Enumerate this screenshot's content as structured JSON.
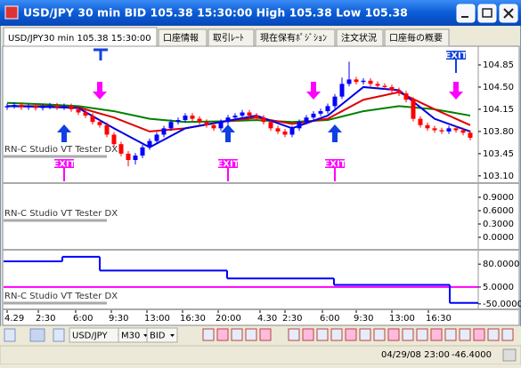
{
  "window": {
    "title": "USD/JPY 30 min BID 105.38 15:30:00 High 105.38 Low 105.38"
  },
  "tabs": [
    "USD/JPY30 min 105.38 15:30:00",
    "口座情報",
    "取引ﾚｰﾄ",
    "現在保有ﾎﾟｼﾞｼｮﾝ",
    "注文状況",
    "口座毎の概要"
  ],
  "chart_data": [
    {
      "type": "candlestick",
      "label": "RN-C Studio VT Tester DX",
      "exit_label": "EXIT",
      "up_color": "#0000ff",
      "down_color": "#ff0000",
      "open": [
        104.18,
        104.2,
        104.22,
        104.18,
        104.2,
        104.17,
        104.19,
        104.21,
        104.18,
        104.2,
        104.15,
        104.1,
        104.05,
        103.95,
        103.9,
        103.75,
        103.6,
        103.45,
        103.35,
        103.42,
        103.55,
        103.65,
        103.75,
        103.85,
        103.95,
        103.98,
        104.05,
        104.0,
        103.95,
        103.9,
        103.85,
        103.95,
        104.02,
        104.05,
        104.1,
        104.05,
        104.02,
        103.95,
        103.85,
        103.8,
        103.75,
        103.85,
        103.95,
        104.02,
        104.08,
        104.12,
        104.2,
        104.35,
        104.55,
        104.62,
        104.58,
        104.6,
        104.55,
        104.52,
        104.5,
        104.45,
        104.4,
        104.3,
        104.0,
        103.9,
        103.85,
        103.82,
        103.8,
        103.85,
        103.82,
        103.78
      ],
      "high": [
        104.24,
        104.26,
        104.26,
        104.24,
        104.24,
        104.23,
        104.25,
        104.25,
        104.24,
        104.24,
        104.19,
        104.14,
        104.09,
        103.99,
        103.94,
        103.79,
        103.64,
        103.49,
        103.46,
        103.59,
        103.69,
        103.79,
        103.89,
        103.99,
        104.02,
        104.09,
        104.09,
        104.04,
        103.99,
        103.94,
        103.99,
        104.06,
        104.09,
        104.14,
        104.14,
        104.09,
        104.06,
        103.99,
        103.89,
        103.84,
        103.89,
        103.99,
        104.06,
        104.12,
        104.16,
        104.24,
        104.39,
        104.65,
        104.9,
        104.66,
        104.64,
        104.64,
        104.59,
        104.56,
        104.54,
        104.49,
        104.44,
        104.34,
        104.04,
        103.94,
        103.89,
        103.86,
        103.89,
        103.89,
        103.86,
        103.82
      ],
      "low": [
        104.14,
        104.16,
        104.14,
        104.14,
        104.13,
        104.13,
        104.15,
        104.14,
        104.14,
        104.11,
        104.06,
        104.01,
        103.91,
        103.86,
        103.71,
        103.56,
        103.41,
        103.25,
        103.28,
        103.38,
        103.51,
        103.61,
        103.71,
        103.81,
        103.91,
        103.94,
        103.96,
        103.91,
        103.86,
        103.81,
        103.81,
        103.91,
        103.98,
        104.01,
        104.01,
        103.98,
        103.91,
        103.81,
        103.76,
        103.71,
        103.71,
        103.81,
        103.91,
        103.98,
        104.04,
        104.08,
        104.16,
        104.31,
        104.51,
        104.54,
        104.54,
        104.51,
        104.48,
        104.46,
        104.41,
        104.36,
        104.26,
        103.96,
        103.86,
        103.81,
        103.78,
        103.76,
        103.76,
        103.78,
        103.74,
        103.66
      ],
      "close": [
        104.2,
        104.22,
        104.18,
        104.2,
        104.17,
        104.19,
        104.21,
        104.18,
        104.2,
        104.15,
        104.1,
        104.05,
        103.95,
        103.9,
        103.75,
        103.6,
        103.45,
        103.35,
        103.42,
        103.55,
        103.65,
        103.75,
        103.85,
        103.95,
        103.98,
        104.05,
        104.0,
        103.95,
        103.9,
        103.85,
        103.95,
        104.02,
        104.05,
        104.1,
        104.05,
        104.02,
        103.95,
        103.85,
        103.8,
        103.75,
        103.85,
        103.95,
        104.02,
        104.08,
        104.12,
        104.2,
        104.35,
        104.55,
        104.62,
        104.58,
        104.6,
        104.55,
        104.52,
        104.5,
        104.45,
        104.4,
        104.3,
        104.0,
        103.9,
        103.85,
        103.82,
        103.8,
        103.85,
        103.82,
        103.78,
        103.7
      ],
      "series": [
        {
          "color": "#008000",
          "values": [
            104.25,
            104.23,
            104.2,
            104.12,
            104.0,
            103.95,
            103.96,
            103.98,
            103.95,
            103.98,
            104.12,
            104.2,
            104.15,
            104.05
          ]
        },
        {
          "color": "#e00000",
          "values": [
            104.2,
            104.2,
            104.18,
            104.02,
            103.8,
            103.85,
            103.95,
            104.02,
            103.92,
            104.0,
            104.3,
            104.42,
            104.15,
            103.9
          ]
        },
        {
          "color": "#0000e0",
          "values": [
            104.2,
            104.19,
            104.17,
            103.85,
            103.55,
            103.85,
            103.95,
            104.05,
            103.85,
            104.05,
            104.5,
            104.45,
            104.0,
            103.8
          ]
        }
      ],
      "ylim": [
        103.0,
        105.13
      ],
      "yticks": [
        104.85,
        {
          "value": 104.5,
          "label": "104.50"
        },
        104.15,
        {
          "value": 103.8,
          "label": "103.80"
        },
        103.45,
        {
          "value": 103.1,
          "label": "103.10"
        }
      ]
    },
    {
      "type": "line",
      "label": "RN-C Studio VT Tester DX",
      "ylim": [
        -0.26,
        1.2
      ],
      "yticks": [
        {
          "value": 0.9,
          "label": "0.9000"
        },
        {
          "value": 0.6,
          "label": "0.6000"
        },
        {
          "value": 0.3,
          "label": "0.3000"
        },
        {
          "value": 0,
          "label": "0.0000"
        }
      ],
      "series": []
    },
    {
      "type": "step",
      "label": "RN-C Studio VT Tester DX",
      "ylim": [
        -65,
        124
      ],
      "yticks": [
        {
          "value": 80,
          "label": "80.0000"
        },
        {
          "value": 5,
          "label": "5.0000"
        },
        {
          "value": -50,
          "label": "-50.0000"
        }
      ],
      "series": [
        {
          "color": "#ff00ff",
          "values": [
            5
          ]
        },
        {
          "color": "#0000ff",
          "values": [
            89,
            104,
            59,
            33,
            12,
            -47
          ]
        }
      ]
    }
  ],
  "time_axis": [
    "4.29",
    "2:30",
    "6:00",
    "9:30",
    "13:00",
    "16:30",
    "20:00",
    "4.30",
    "2:30",
    "6:00",
    "9:30",
    "13:00",
    "16:30"
  ],
  "toolbar": {
    "symbol": "USD/JPY",
    "timeframe": "M30",
    "price": "BID"
  },
  "status": {
    "datetime": "04/29/08 23:00",
    "value": "-46.4000"
  }
}
